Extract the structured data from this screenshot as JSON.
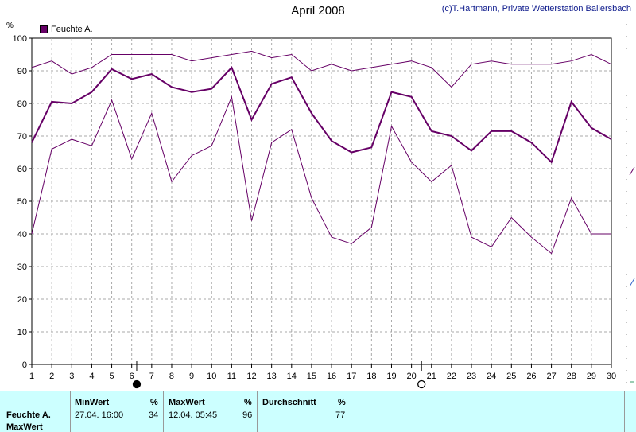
{
  "header": {
    "title": "April 2008",
    "credit": "(c)T.Hartmann, Private Wetterstation Ballersbach"
  },
  "colors": {
    "series": "#660066",
    "grid": "#aaaaaa",
    "stats_bg": "#ccffff"
  },
  "chart_data": {
    "type": "line",
    "legend": "Feuchte A.",
    "ylabel": "%",
    "ylim": [
      0,
      100
    ],
    "yticks": [
      0,
      10,
      20,
      30,
      40,
      50,
      60,
      70,
      80,
      90,
      100
    ],
    "x": [
      1,
      2,
      3,
      4,
      5,
      6,
      7,
      8,
      9,
      10,
      11,
      12,
      13,
      14,
      15,
      16,
      17,
      18,
      19,
      20,
      21,
      22,
      23,
      24,
      25,
      26,
      27,
      28,
      29,
      30
    ],
    "moon_markers": [
      {
        "day": 6.25,
        "phase": "new-moon"
      },
      {
        "day": 20.5,
        "phase": "full-moon"
      }
    ],
    "series": [
      {
        "role": "max",
        "width": 1,
        "values": [
          91,
          93,
          89,
          91,
          95,
          95,
          95,
          95,
          93,
          94,
          95,
          96,
          94,
          95,
          90,
          92,
          90,
          91,
          92,
          93,
          91,
          85,
          92,
          93,
          92,
          92,
          92,
          93,
          95,
          92
        ]
      },
      {
        "role": "avg",
        "width": 2,
        "values": [
          68,
          80.5,
          80,
          83.5,
          90.5,
          87.5,
          89,
          85,
          83.5,
          84.5,
          91,
          75,
          86,
          88,
          77,
          68.5,
          65,
          66.5,
          83.5,
          82,
          71.5,
          70,
          65.5,
          71.5,
          71.5,
          68,
          62,
          80.5,
          72.5,
          69
        ]
      },
      {
        "role": "min",
        "width": 1,
        "values": [
          40,
          66,
          69,
          67,
          81,
          63,
          77,
          56,
          64,
          67,
          82,
          44,
          68,
          72,
          51,
          39,
          37,
          42,
          73,
          62,
          56,
          61,
          39,
          36,
          45,
          39,
          34,
          51,
          40,
          40
        ]
      }
    ]
  },
  "stats": {
    "row_label": "Feuchte A.",
    "row_label2": "MaxWert",
    "min_header": "MinWert",
    "min_unit": "%",
    "min_time": "27.04.  16:00",
    "min_value": "34",
    "max_header": "MaxWert",
    "max_unit": "%",
    "max_time": "12.04.  05:45",
    "max_value": "96",
    "avg_header": "Durchschnitt",
    "avg_unit": "%",
    "avg_value": "77"
  }
}
